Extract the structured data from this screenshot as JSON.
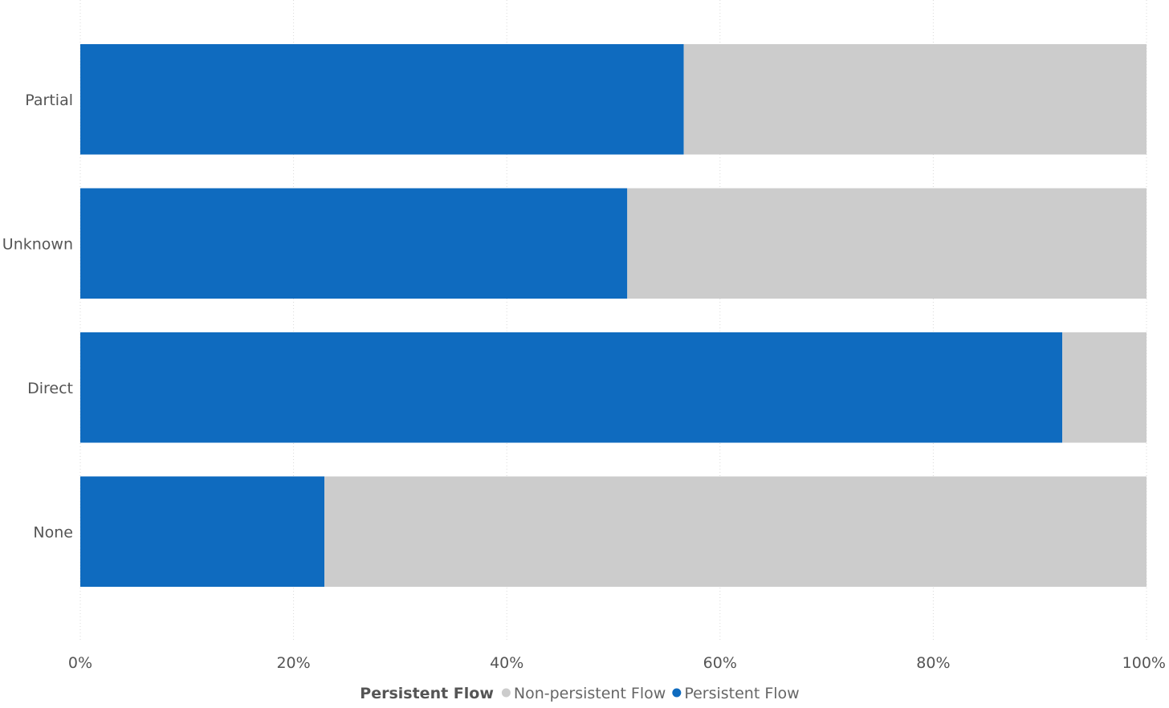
{
  "chart_data": {
    "type": "bar",
    "orientation": "horizontal",
    "stacked": "100%",
    "categories": [
      "Partial",
      "Unknown",
      "Direct",
      "None"
    ],
    "series": [
      {
        "name": "Persistent Flow",
        "color": "#0F6BBF",
        "values": [
          56.6,
          51.3,
          92.1,
          22.9
        ]
      },
      {
        "name": "Non-persistent Flow",
        "color": "#CCCCCC",
        "values": [
          43.4,
          48.7,
          7.9,
          77.1
        ]
      }
    ],
    "x_ticks": [
      "0%",
      "20%",
      "40%",
      "60%",
      "80%",
      "100%"
    ],
    "xlim": [
      0,
      100
    ],
    "grid": "vertical-dotted",
    "legend": {
      "position": "bottom-center",
      "title": "Persistent Flow",
      "items": [
        {
          "name": "Non-persistent Flow",
          "color": "#CCCCCC"
        },
        {
          "name": "Persistent Flow",
          "color": "#0F6BBF"
        }
      ]
    }
  }
}
